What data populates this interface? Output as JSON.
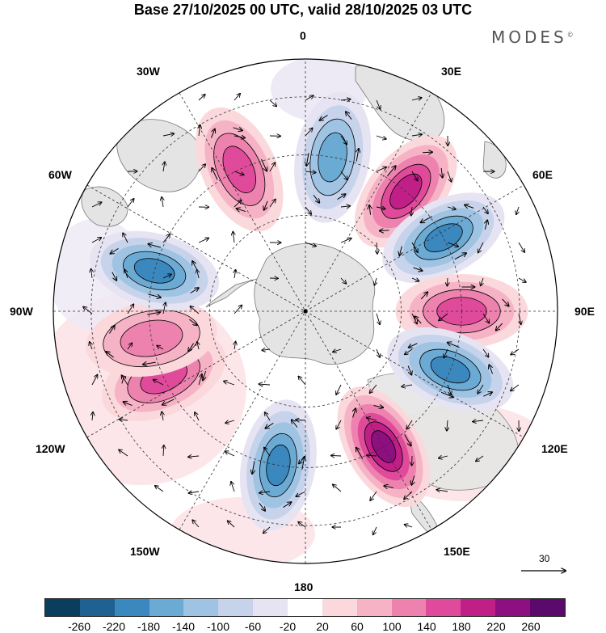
{
  "title": "Base 27/10/2025 00 UTC, valid 28/10/2025 03 UTC",
  "brand": "MODES",
  "brand_mark": "©",
  "map": {
    "projection": "South polar stereographic",
    "longitude_labels": {
      "top": "0",
      "bottom": "180",
      "left": "90W",
      "right": "90E",
      "upper_left_1": "30W",
      "upper_left_2": "60W",
      "upper_right_1": "30E",
      "upper_right_2": "60E",
      "lower_left_1": "120W",
      "lower_left_2": "150W",
      "lower_right_1": "120E",
      "lower_right_2": "150E"
    },
    "vector_scale_label": "30",
    "anomaly_centers": [
      {
        "lon": 10,
        "value": -160
      },
      {
        "lon": -25,
        "value": 160
      },
      {
        "lon": 40,
        "value": 190
      },
      {
        "lon": 62,
        "value": -210
      },
      {
        "lon": 90,
        "value": 170
      },
      {
        "lon": 112,
        "value": -180
      },
      {
        "lon": 150,
        "value": 220
      },
      {
        "lon": -170,
        "value": -200
      },
      {
        "lon": -115,
        "value": 160
      },
      {
        "lon": -100,
        "value": 130
      },
      {
        "lon": -75,
        "value": -200
      }
    ]
  },
  "colorbar": {
    "colors": [
      "#0b3d5c",
      "#1f6190",
      "#3b88bf",
      "#6aaad3",
      "#9fc3e2",
      "#c6d3ea",
      "#e6e4f2",
      "#ffffff",
      "#fbd8dc",
      "#f6b3c6",
      "#ee82ae",
      "#e04a9a",
      "#c11f88",
      "#8e0f80",
      "#5a0a6a"
    ],
    "tick_labels": [
      "-260",
      "-220",
      "-180",
      "-140",
      "-100",
      "-60",
      "-20",
      "20",
      "60",
      "100",
      "140",
      "180",
      "220",
      "260"
    ]
  },
  "palette": {
    "land": "#e4e4e4",
    "coast": "#777777",
    "grid": "#333333"
  }
}
